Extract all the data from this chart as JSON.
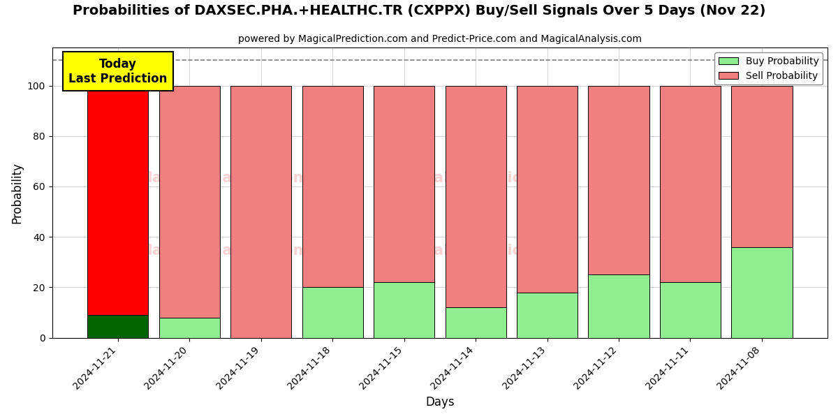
{
  "title": "Probabilities of DAXSEC.PHA.+HEALTHC.TR (CXPPX) Buy/Sell Signals Over 5 Days (Nov 22)",
  "subtitle": "powered by MagicalPrediction.com and Predict-Price.com and MagicalAnalysis.com",
  "xlabel": "Days",
  "ylabel": "Probability",
  "categories": [
    "2024-11-21",
    "2024-11-20",
    "2024-11-19",
    "2024-11-18",
    "2024-11-15",
    "2024-11-14",
    "2024-11-13",
    "2024-11-12",
    "2024-11-11",
    "2024-11-08"
  ],
  "buy_probs": [
    9,
    8,
    0,
    20,
    22,
    12,
    18,
    25,
    22,
    36
  ],
  "sell_probs": [
    91,
    92,
    100,
    80,
    78,
    88,
    82,
    75,
    78,
    64
  ],
  "first_bar_buy_color": "#006400",
  "first_bar_sell_color": "#ff0000",
  "buy_color": "#90ee90",
  "sell_color": "#f08080",
  "bar_edge_color": "#000000",
  "today_box_color": "#ffff00",
  "today_box_text": "Today\nLast Prediction",
  "dashed_line_y": 110,
  "ylim": [
    0,
    115
  ],
  "yticks": [
    0,
    20,
    40,
    60,
    80,
    100
  ],
  "watermark_color": "#f08080",
  "watermark_alpha": 0.35,
  "legend_buy_label": "Buy Probability",
  "legend_sell_label": "Sell Probability",
  "figsize": [
    12,
    6
  ],
  "dpi": 100
}
